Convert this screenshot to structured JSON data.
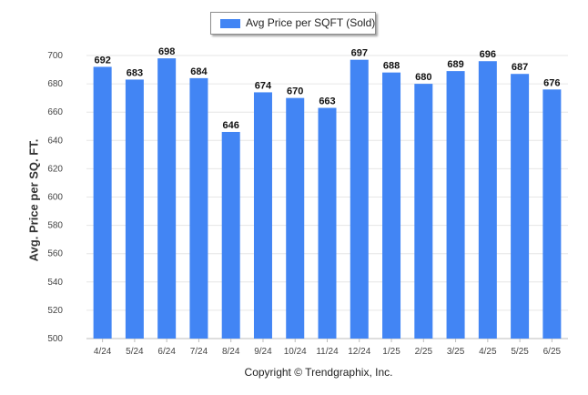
{
  "legend": {
    "label": "Avg Price per SQFT (Sold)"
  },
  "footer": {
    "text": "Copyright © Trendgraphix, Inc."
  },
  "colors": {
    "bar": "#4285f4",
    "grid": "#e6e6e6",
    "axis": "#bdbdbd"
  },
  "chart_data": {
    "type": "bar",
    "title": "",
    "xlabel": "",
    "ylabel": "Avg. Price per SQ. FT.",
    "legend": [
      "Avg Price per SQFT (Sold)"
    ],
    "legend_position": "top-center",
    "grid": true,
    "ylim": [
      500,
      700
    ],
    "yticks": [
      500,
      520,
      540,
      560,
      580,
      600,
      620,
      640,
      660,
      680,
      700
    ],
    "categories": [
      "4/24",
      "5/24",
      "6/24",
      "7/24",
      "8/24",
      "9/24",
      "10/24",
      "11/24",
      "12/24",
      "1/25",
      "2/25",
      "3/25",
      "4/25",
      "5/25",
      "6/25"
    ],
    "series": [
      {
        "name": "Avg Price per SQFT (Sold)",
        "values": [
          692,
          683,
          698,
          684,
          646,
          674,
          670,
          663,
          697,
          688,
          680,
          689,
          696,
          687,
          676
        ]
      }
    ]
  }
}
